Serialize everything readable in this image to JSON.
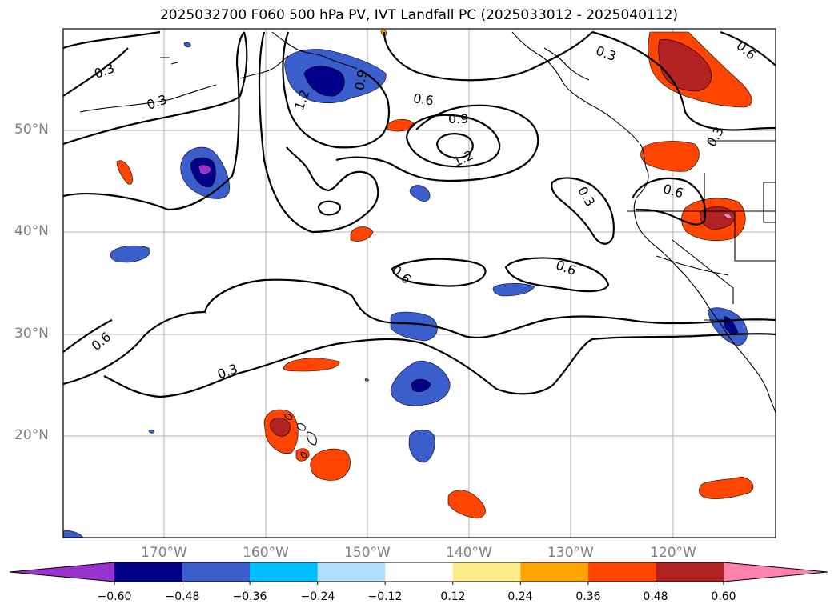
{
  "title": "2025032700 F060 500 hPa PV, IVT Landfall PC (2025033012 - 2025040112)",
  "map": {
    "lat_labels": [
      "50°N",
      "40°N",
      "30°N",
      "20°N"
    ],
    "lon_labels": [
      "170°W",
      "160°W",
      "150°W",
      "140°W",
      "130°W",
      "120°W"
    ],
    "contour_labels": [
      "0.3",
      "0.3",
      "1.2",
      "0.9",
      "0.6",
      "0.9",
      "1.2",
      "0.3",
      "0.6",
      "0.3",
      "0.6",
      "0.3",
      "0.6",
      "0.6",
      "0.6",
      "0.3"
    ],
    "colors": {
      "purple": "#9a32cd",
      "navy": "#00008b",
      "blue": "#3a5fcd",
      "cyan": "#00bfff",
      "lightblue": "#b0e2ff",
      "white": "#ffffff",
      "lightyellow": "#ffec8b",
      "orange": "#ffa500",
      "orangered": "#ff4500",
      "firebrick": "#b22222",
      "pink": "#ff82ab"
    }
  },
  "colorbar": {
    "ticks": [
      "−0.60",
      "−0.48",
      "−0.36",
      "−0.24",
      "−0.12",
      "0.12",
      "0.24",
      "0.36",
      "0.48",
      "0.60"
    ],
    "segments": [
      "#9a32cd",
      "#00008b",
      "#3a5fcd",
      "#00bfff",
      "#b0e2ff",
      "#ffffff",
      "#ffec8b",
      "#ffa500",
      "#ff4500",
      "#b22222",
      "#ff82ab"
    ]
  }
}
